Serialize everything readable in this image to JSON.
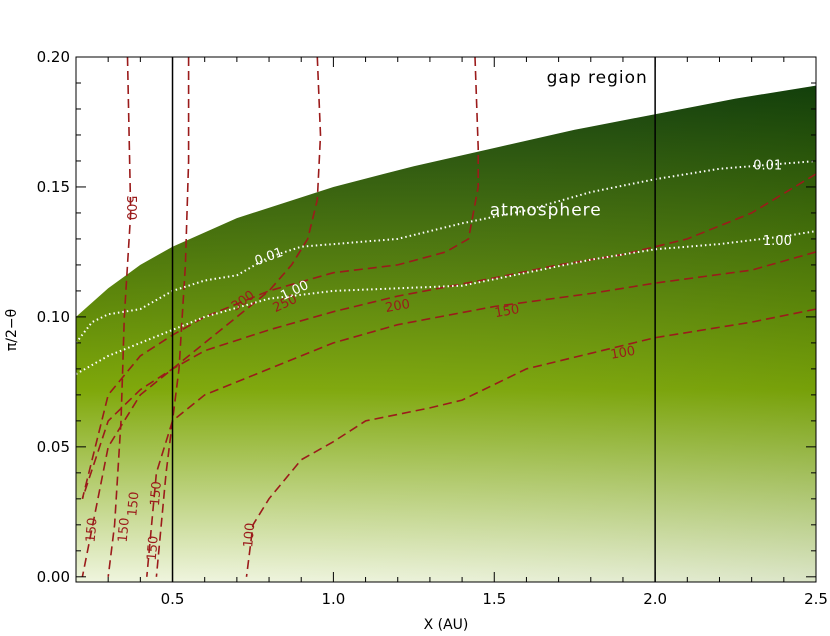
{
  "chart_data": {
    "type": "heatmap",
    "title": "",
    "xlabel": "X (AU)",
    "ylabel": "π/2−θ",
    "xlim": [
      0.2,
      2.5
    ],
    "ylim": [
      -0.002,
      0.2
    ],
    "x_ticks": [
      0.5,
      1.0,
      1.5,
      2.0,
      2.5
    ],
    "x_tick_labels": [
      "0.5",
      "1.0",
      "1.5",
      "2.0",
      "2.5"
    ],
    "y_ticks": [
      0.0,
      0.05,
      0.1,
      0.15,
      0.2
    ],
    "y_tick_labels": [
      "0.00",
      "0.05",
      "0.10",
      "0.15",
      "0.20"
    ],
    "grid": false,
    "colors": {
      "fill_low": "#eef4dc",
      "fill_mid": "#7fa80a",
      "fill_high": "#0e3a0c",
      "temperature_contours": "#9b1b1b",
      "optical_depth_contours": "#ffffff",
      "vertical_lines": "#000000"
    },
    "disk_surface": {
      "x": [
        0.2,
        0.3,
        0.4,
        0.5,
        0.7,
        1.0,
        1.25,
        1.5,
        1.75,
        2.0,
        2.25,
        2.5
      ],
      "y": [
        0.1,
        0.111,
        0.12,
        0.127,
        0.138,
        0.15,
        0.158,
        0.165,
        0.172,
        0.178,
        0.184,
        0.189
      ]
    },
    "vertical_lines": [
      0.5,
      2.0
    ],
    "temperature_contours": [
      {
        "label": "500",
        "x": [
          0.36,
          0.365,
          0.37,
          0.36,
          0.35,
          0.345,
          0.34,
          0.33,
          0.32,
          0.3
        ],
        "y": [
          0.2,
          0.17,
          0.14,
          0.12,
          0.1,
          0.08,
          0.06,
          0.04,
          0.02,
          0.0
        ]
      },
      {
        "label": "",
        "x": [
          0.55,
          0.55,
          0.54,
          0.53,
          0.52,
          0.5,
          0.48,
          0.45
        ],
        "y": [
          0.2,
          0.16,
          0.12,
          0.1,
          0.08,
          0.06,
          0.04,
          0.0
        ]
      },
      {
        "label": "",
        "x": [
          0.95,
          0.96,
          0.95,
          0.92,
          0.87,
          0.8,
          0.7,
          0.6,
          0.5,
          0.4,
          0.3,
          0.22
        ],
        "y": [
          0.2,
          0.17,
          0.145,
          0.13,
          0.12,
          0.11,
          0.1,
          0.09,
          0.08,
          0.07,
          0.05,
          0.0
        ]
      },
      {
        "label": "300",
        "x": [
          1.44,
          1.45,
          1.45,
          1.42,
          1.35,
          1.2,
          1.0,
          0.8,
          0.6,
          0.5,
          0.4,
          0.3,
          0.22
        ],
        "y": [
          0.2,
          0.165,
          0.15,
          0.13,
          0.125,
          0.12,
          0.117,
          0.11,
          0.1,
          0.093,
          0.085,
          0.07,
          0.03
        ]
      },
      {
        "label": "200",
        "x": [
          2.5,
          2.3,
          2.1,
          1.9,
          1.7,
          1.5,
          1.2,
          1.0,
          0.8,
          0.6,
          0.5,
          0.4,
          0.3,
          0.22
        ],
        "y": [
          0.155,
          0.14,
          0.13,
          0.124,
          0.12,
          0.115,
          0.108,
          0.102,
          0.095,
          0.087,
          0.08,
          0.072,
          0.06,
          0.03
        ]
      },
      {
        "label": "150",
        "x": [
          2.5,
          2.3,
          2.0,
          1.8,
          1.5,
          1.2,
          1.0,
          0.8,
          0.6,
          0.5,
          0.45,
          0.42
        ],
        "y": [
          0.125,
          0.118,
          0.113,
          0.109,
          0.104,
          0.097,
          0.09,
          0.08,
          0.07,
          0.06,
          0.04,
          0.0
        ]
      },
      {
        "label": "100",
        "x": [
          2.5,
          2.3,
          2.0,
          1.8,
          1.6,
          1.4,
          1.3,
          1.1,
          1.0,
          0.9,
          0.8,
          0.75,
          0.73
        ],
        "y": [
          0.103,
          0.098,
          0.092,
          0.086,
          0.08,
          0.068,
          0.065,
          0.06,
          0.052,
          0.045,
          0.03,
          0.02,
          0.0
        ]
      }
    ],
    "optical_depth_contours": [
      {
        "label": "0.01",
        "x": [
          0.2,
          0.25,
          0.3,
          0.4,
          0.5,
          0.6,
          0.7,
          0.8,
          0.9,
          1.0,
          1.2,
          1.4,
          1.6,
          1.8,
          2.0,
          2.2,
          2.4,
          2.5
        ],
        "y": [
          0.09,
          0.098,
          0.101,
          0.103,
          0.11,
          0.114,
          0.116,
          0.123,
          0.127,
          0.128,
          0.13,
          0.136,
          0.141,
          0.148,
          0.153,
          0.157,
          0.159,
          0.16
        ]
      },
      {
        "label": "1.00",
        "x": [
          0.2,
          0.3,
          0.4,
          0.5,
          0.6,
          0.8,
          1.0,
          1.2,
          1.4,
          1.6,
          1.8,
          2.0,
          2.2,
          2.4,
          2.5
        ],
        "y": [
          0.078,
          0.085,
          0.09,
          0.095,
          0.1,
          0.107,
          0.11,
          0.111,
          0.112,
          0.117,
          0.122,
          0.126,
          0.128,
          0.131,
          0.133
        ]
      }
    ],
    "contour_labels": [
      {
        "text": "500",
        "x": 0.37,
        "y": 0.142,
        "color": "temperature",
        "rotate": 90
      },
      {
        "text": "300",
        "x": 0.72,
        "y": 0.106,
        "color": "temperature",
        "rotate": -35
      },
      {
        "text": "250",
        "x": 0.85,
        "y": 0.105,
        "color": "temperature",
        "rotate": -25
      },
      {
        "text": "200",
        "x": 1.2,
        "y": 0.104,
        "color": "temperature",
        "rotate": -10
      },
      {
        "text": "150",
        "x": 1.54,
        "y": 0.102,
        "color": "temperature",
        "rotate": -10
      },
      {
        "text": "100",
        "x": 1.9,
        "y": 0.086,
        "color": "temperature",
        "rotate": -10
      },
      {
        "text": "100",
        "x": 0.74,
        "y": 0.016,
        "color": "temperature",
        "rotate": -85
      },
      {
        "text": "150",
        "x": 0.44,
        "y": 0.011,
        "color": "temperature",
        "rotate": -85
      },
      {
        "text": "150",
        "x": 0.45,
        "y": 0.032,
        "color": "temperature",
        "rotate": -85
      },
      {
        "text": "150",
        "x": 0.38,
        "y": 0.028,
        "color": "temperature",
        "rotate": -85
      },
      {
        "text": "150",
        "x": 0.35,
        "y": 0.018,
        "color": "temperature",
        "rotate": -85
      },
      {
        "text": "150",
        "x": 0.25,
        "y": 0.018,
        "color": "temperature",
        "rotate": -85
      },
      {
        "text": "0.01",
        "x": 0.8,
        "y": 0.123,
        "color": "optical",
        "rotate": -20
      },
      {
        "text": "0.01",
        "x": 2.35,
        "y": 0.158,
        "color": "optical",
        "rotate": 0
      },
      {
        "text": "1.00",
        "x": 0.88,
        "y": 0.11,
        "color": "optical",
        "rotate": -25
      },
      {
        "text": "1.00",
        "x": 2.38,
        "y": 0.129,
        "color": "optical",
        "rotate": 0
      }
    ],
    "annotations": [
      {
        "text": "gap region",
        "x": 1.82,
        "y": 0.19,
        "color": "#000000"
      },
      {
        "text": "atmosphere",
        "x": 1.66,
        "y": 0.139,
        "color": "#ffffff"
      }
    ]
  }
}
